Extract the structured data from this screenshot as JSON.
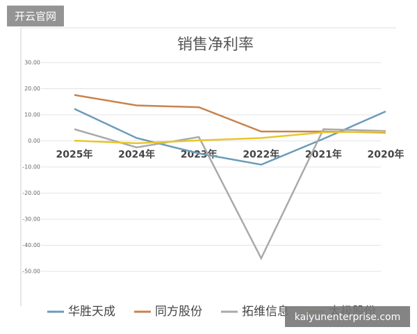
{
  "chart_data": {
    "type": "line",
    "title": "销售净利率",
    "categories": [
      "2025年",
      "2024年",
      "2023年",
      "2022年",
      "2021年",
      "2020年"
    ],
    "series": [
      {
        "name": "华胜天成",
        "color": "#6b9bb8",
        "values": [
          12.3,
          1.1,
          -4.8,
          -9.1,
          0.8,
          11.3
        ]
      },
      {
        "name": "同方股份",
        "color": "#c8824b",
        "values": [
          17.6,
          13.6,
          12.9,
          3.6,
          3.6,
          3.2
        ]
      },
      {
        "name": "拓维信息",
        "color": "#a9a9a9",
        "values": [
          4.5,
          -2.5,
          1.5,
          -45,
          4.5,
          3.8
        ]
      },
      {
        "name": "太极股份",
        "color": "#e8c62e",
        "values": [
          0.1,
          -0.9,
          0.2,
          1.1,
          3.3,
          3.5
        ]
      }
    ],
    "ylim": [
      -50,
      30
    ],
    "yticks": [
      {
        "value": 30,
        "label": "30.00"
      },
      {
        "value": 20,
        "label": "20.00"
      },
      {
        "value": 10,
        "label": "10.00"
      },
      {
        "value": 0,
        "label": "0.00"
      },
      {
        "value": -10,
        "label": "-10.00"
      },
      {
        "value": -20,
        "label": "-20.00"
      },
      {
        "value": -30,
        "label": "-30.00"
      },
      {
        "value": -40,
        "label": "-40.00"
      },
      {
        "value": -50,
        "label": "-50.00"
      }
    ],
    "grid": true
  },
  "watermarks": {
    "top_left": "开云官网",
    "bottom_right": "kaiyunenterprise.com"
  }
}
